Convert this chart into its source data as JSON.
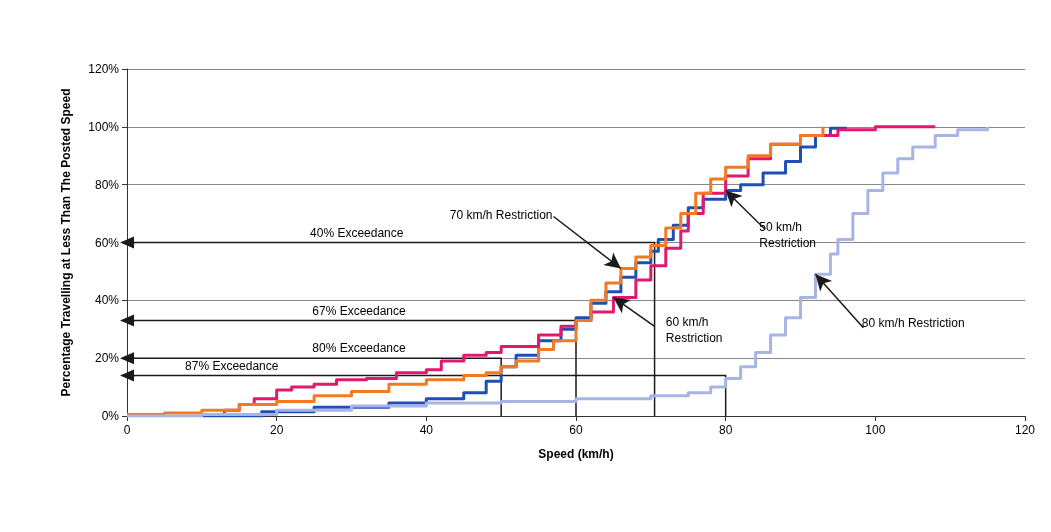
{
  "chart_data": {
    "type": "step",
    "xlabel": "Speed (km/h)",
    "ylabel": "Percentage Travelling at Less Than The Posted Speed",
    "xlim": [
      0,
      120
    ],
    "xticks": [
      0,
      20,
      40,
      60,
      80,
      100,
      120
    ],
    "ylim": [
      0,
      120
    ],
    "yticks": [
      {
        "value": 0,
        "label": "0%"
      },
      {
        "value": 20,
        "label": "20%"
      },
      {
        "value": 40,
        "label": "40%"
      },
      {
        "value": 60,
        "label": "60%"
      },
      {
        "value": 80,
        "label": "80%"
      },
      {
        "value": 100,
        "label": "100%"
      },
      {
        "value": 120,
        "label": "120%"
      }
    ],
    "grid": "y",
    "marker": "none",
    "line_style": "solid",
    "series": [
      {
        "color": "#1f4fb4",
        "x": [
          10,
          18,
          25,
          35,
          40,
          45,
          48,
          50,
          52,
          55,
          58,
          60,
          62,
          64,
          66,
          68,
          70,
          71,
          73,
          75,
          77,
          80,
          82,
          85,
          88,
          90,
          92,
          94,
          96
        ],
        "values": [
          0,
          1.5,
          3,
          4.5,
          6,
          8,
          12,
          17,
          21,
          26,
          30,
          34,
          39,
          43,
          48,
          53,
          57,
          61,
          66,
          72,
          75,
          78,
          80,
          84,
          88,
          93,
          97,
          99.5,
          100
        ]
      },
      {
        "color": "#e0186e",
        "x": [
          10,
          13,
          15,
          17,
          20,
          22,
          25,
          28,
          32,
          36,
          40,
          42,
          45,
          48,
          50,
          55,
          58,
          60,
          62,
          65,
          68,
          70,
          72,
          74,
          75,
          77,
          80,
          83,
          86,
          90,
          95,
          100,
          108
        ],
        "values": [
          0.5,
          2,
          4,
          6,
          9,
          10,
          11,
          12.5,
          13,
          15,
          16,
          19,
          21,
          22,
          24,
          28,
          31,
          33,
          36,
          41,
          47,
          52,
          58,
          64,
          70,
          77,
          83,
          89,
          94,
          97,
          99,
          100,
          100
        ]
      },
      {
        "color": "#f07b22",
        "x": [
          0,
          5,
          10,
          15,
          20,
          25,
          30,
          35,
          40,
          45,
          48,
          50,
          52,
          55,
          57,
          60,
          62,
          64,
          66,
          68,
          70,
          72,
          74,
          76,
          78,
          80,
          83,
          86,
          90,
          93
        ],
        "values": [
          0.5,
          1,
          2,
          4,
          5,
          7,
          8.5,
          11,
          12.5,
          14,
          15,
          17,
          19,
          23,
          26,
          33,
          40,
          46,
          51,
          55,
          59,
          65,
          70,
          77,
          82,
          86,
          90,
          94,
          97,
          100
        ]
      },
      {
        "color": "#a8b4e6",
        "x": [
          0,
          10,
          20,
          30,
          40,
          50,
          60,
          70,
          75,
          78,
          80,
          82,
          84,
          86,
          88,
          90,
          92,
          94,
          95,
          97,
          99,
          101,
          103,
          105,
          108,
          111,
          115
        ],
        "values": [
          0,
          0.5,
          2,
          3.5,
          4.5,
          5,
          6,
          7,
          8,
          10,
          13,
          17,
          22,
          28,
          34,
          41,
          49,
          56,
          61,
          70,
          78,
          84,
          89,
          93,
          97,
          99,
          100
        ]
      },
      {
        "name": "40% Exceedance",
        "type": "line",
        "color": "#1a1a1a",
        "x": [
          0,
          70.5,
          70.5
        ],
        "values": [
          60,
          60,
          0
        ]
      },
      {
        "name": "67% Exceedance",
        "type": "line",
        "color": "#1a1a1a",
        "x": [
          0,
          60,
          60
        ],
        "values": [
          33,
          33,
          0
        ]
      },
      {
        "name": "80% Exceedance",
        "type": "line",
        "color": "#1a1a1a",
        "x": [
          0,
          50,
          50
        ],
        "values": [
          20,
          20,
          0
        ]
      },
      {
        "name": "87% Exceedance",
        "type": "line",
        "color": "#1a1a1a",
        "x": [
          0,
          80,
          80
        ],
        "values": [
          14,
          14,
          0
        ]
      }
    ],
    "annotations": [
      {
        "text": "50 km/h\nRestriction",
        "x": 80,
        "y": 78
      },
      {
        "text": "60 km/h\nRestriction",
        "x": 65,
        "y": 41
      },
      {
        "text": "70 km/h Restriction",
        "x": 66,
        "y": 51
      },
      {
        "text": "80 km/h Restriction",
        "x": 92,
        "y": 49
      }
    ]
  }
}
